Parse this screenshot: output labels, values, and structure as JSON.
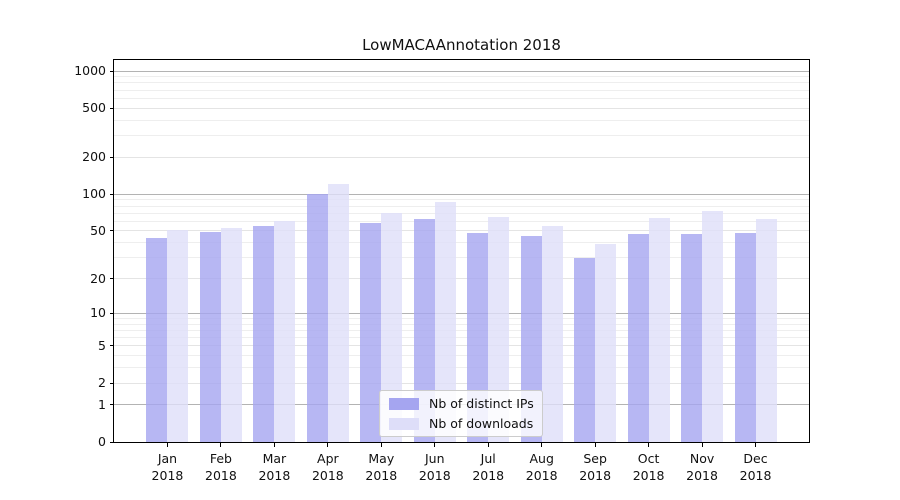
{
  "chart_data": {
    "type": "bar",
    "title": "LowMACAAnnotation 2018",
    "categories": [
      "Jan 2018",
      "Feb 2018",
      "Mar 2018",
      "Apr 2018",
      "May 2018",
      "Jun 2018",
      "Jul 2018",
      "Aug 2018",
      "Sep 2018",
      "Oct 2018",
      "Nov 2018",
      "Dec 2018"
    ],
    "series": [
      {
        "name": "Nb of distinct IPs",
        "color": "#a5a5f0",
        "values": [
          44,
          49,
          55,
          100,
          58,
          63,
          48,
          45,
          30,
          47,
          47,
          48
        ]
      },
      {
        "name": "Nb of downloads",
        "color": "#dedef9",
        "values": [
          51,
          53,
          60,
          120,
          70,
          87,
          65,
          55,
          39,
          64,
          73,
          63
        ]
      }
    ],
    "xlabel": "",
    "ylabel": "",
    "yscale": "log1p",
    "ylim": [
      0,
      1000
    ],
    "ytick_labels": [
      "0",
      "1",
      "2",
      "5",
      "10",
      "20",
      "50",
      "100",
      "200",
      "500",
      "1000"
    ],
    "ytick_values": [
      0,
      1,
      2,
      5,
      10,
      20,
      50,
      100,
      200,
      500,
      1000
    ],
    "grid": true,
    "legend_position": "lower-center-inside"
  }
}
